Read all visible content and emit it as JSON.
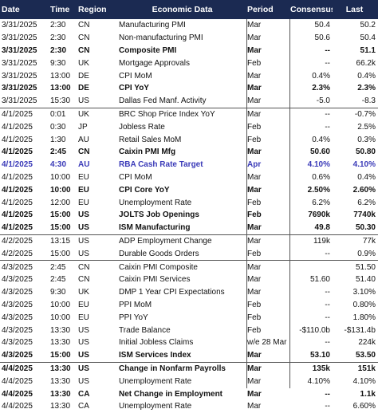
{
  "headers": {
    "date": "Date",
    "time": "Time",
    "region": "Region",
    "event": "Economic Data",
    "period": "Period",
    "consensus": "Consensus",
    "last": "Last"
  },
  "rows": [
    {
      "date": "3/31/2025",
      "time": "2:30",
      "region": "CN",
      "event": "Manufacturing PMI",
      "period": "Mar",
      "consensus": "50.4",
      "last": "50.2",
      "style": "normal",
      "sep": false
    },
    {
      "date": "3/31/2025",
      "time": "2:30",
      "region": "CN",
      "event": "Non-manufacturing PMI",
      "period": "Mar",
      "consensus": "50.6",
      "last": "50.4",
      "style": "normal",
      "sep": false
    },
    {
      "date": "3/31/2025",
      "time": "2:30",
      "region": "CN",
      "event": "Composite PMI",
      "period": "Mar",
      "consensus": "--",
      "last": "51.1",
      "style": "bold",
      "sep": false
    },
    {
      "date": "3/31/2025",
      "time": "9:30",
      "region": "UK",
      "event": "Mortgage Approvals",
      "period": "Feb",
      "consensus": "--",
      "last": "66.2k",
      "style": "normal",
      "sep": false
    },
    {
      "date": "3/31/2025",
      "time": "13:00",
      "region": "DE",
      "event": "CPI MoM",
      "period": "Mar",
      "consensus": "0.4%",
      "last": "0.4%",
      "style": "normal",
      "sep": false
    },
    {
      "date": "3/31/2025",
      "time": "13:00",
      "region": "DE",
      "event": "CPI YoY",
      "period": "Mar",
      "consensus": "2.3%",
      "last": "2.3%",
      "style": "bold",
      "sep": false
    },
    {
      "date": "3/31/2025",
      "time": "15:30",
      "region": "US",
      "event": "Dallas Fed Manf. Activity",
      "period": "Mar",
      "consensus": "-5.0",
      "last": "-8.3",
      "style": "normal",
      "sep": false
    },
    {
      "date": "4/1/2025",
      "time": "0:01",
      "region": "UK",
      "event": "BRC Shop Price Index YoY",
      "period": "Mar",
      "consensus": "--",
      "last": "-0.7%",
      "style": "normal",
      "sep": true
    },
    {
      "date": "4/1/2025",
      "time": "0:30",
      "region": "JP",
      "event": "Jobless Rate",
      "period": "Feb",
      "consensus": "--",
      "last": "2.5%",
      "style": "normal",
      "sep": false
    },
    {
      "date": "4/1/2025",
      "time": "1:30",
      "region": "AU",
      "event": "Retail Sales MoM",
      "period": "Feb",
      "consensus": "0.4%",
      "last": "0.3%",
      "style": "normal",
      "sep": false
    },
    {
      "date": "4/1/2025",
      "time": "2:45",
      "region": "CN",
      "event": "Caixin PMI Mfg",
      "period": "Mar",
      "consensus": "50.60",
      "last": "50.80",
      "style": "bold",
      "sep": false
    },
    {
      "date": "4/1/2025",
      "time": "4:30",
      "region": "AU",
      "event": "RBA Cash Rate Target",
      "period": "Apr",
      "consensus": "4.10%",
      "last": "4.10%",
      "style": "highlight",
      "sep": false
    },
    {
      "date": "4/1/2025",
      "time": "10:00",
      "region": "EU",
      "event": "CPI MoM",
      "period": "Mar",
      "consensus": "0.6%",
      "last": "0.4%",
      "style": "normal",
      "sep": false
    },
    {
      "date": "4/1/2025",
      "time": "10:00",
      "region": "EU",
      "event": "CPI Core YoY",
      "period": "Mar",
      "consensus": "2.50%",
      "last": "2.60%",
      "style": "bold",
      "sep": false
    },
    {
      "date": "4/1/2025",
      "time": "12:00",
      "region": "EU",
      "event": "Unemployment Rate",
      "period": "Feb",
      "consensus": "6.2%",
      "last": "6.2%",
      "style": "normal",
      "sep": false
    },
    {
      "date": "4/1/2025",
      "time": "15:00",
      "region": "US",
      "event": "JOLTS Job Openings",
      "period": "Feb",
      "consensus": "7690k",
      "last": "7740k",
      "style": "bold",
      "sep": false
    },
    {
      "date": "4/1/2025",
      "time": "15:00",
      "region": "US",
      "event": "ISM Manufacturing",
      "period": "Mar",
      "consensus": "49.8",
      "last": "50.30",
      "style": "bold",
      "sep": false
    },
    {
      "date": "4/2/2025",
      "time": "13:15",
      "region": "US",
      "event": "ADP Employment Change",
      "period": "Mar",
      "consensus": "119k",
      "last": "77k",
      "style": "normal",
      "sep": true
    },
    {
      "date": "4/2/2025",
      "time": "15:00",
      "region": "US",
      "event": "Durable Goods Orders",
      "period": "Feb",
      "consensus": "--",
      "last": "0.9%",
      "style": "normal",
      "sep": false
    },
    {
      "date": "4/3/2025",
      "time": "2:45",
      "region": "CN",
      "event": "Caixin PMI Composite",
      "period": "Mar",
      "consensus": "",
      "last": "51.50",
      "style": "normal",
      "sep": true
    },
    {
      "date": "4/3/2025",
      "time": "2:45",
      "region": "CN",
      "event": "Caixin PMI Services",
      "period": "Mar",
      "consensus": "51.60",
      "last": "51.40",
      "style": "normal",
      "sep": false
    },
    {
      "date": "4/3/2025",
      "time": "9:30",
      "region": "UK",
      "event": "DMP 1 Year CPI Expectations",
      "period": "Mar",
      "consensus": "--",
      "last": "3.10%",
      "style": "normal",
      "sep": false
    },
    {
      "date": "4/3/2025",
      "time": "10:00",
      "region": "EU",
      "event": "PPI MoM",
      "period": "Feb",
      "consensus": "--",
      "last": "0.80%",
      "style": "normal",
      "sep": false
    },
    {
      "date": "4/3/2025",
      "time": "10:00",
      "region": "EU",
      "event": "PPI YoY",
      "period": "Feb",
      "consensus": "--",
      "last": "1.80%",
      "style": "normal",
      "sep": false
    },
    {
      "date": "4/3/2025",
      "time": "13:30",
      "region": "US",
      "event": "Trade Balance",
      "period": "Feb",
      "consensus": "-$110.0b",
      "last": "-$131.4b",
      "style": "normal",
      "sep": false
    },
    {
      "date": "4/3/2025",
      "time": "13:30",
      "region": "US",
      "event": "Initial Jobless Claims",
      "period": "w/e 28 Mar",
      "consensus": "--",
      "last": "224k",
      "style": "normal",
      "sep": false
    },
    {
      "date": "4/3/2025",
      "time": "15:00",
      "region": "US",
      "event": "ISM Services Index",
      "period": "Mar",
      "consensus": "53.10",
      "last": "53.50",
      "style": "bold",
      "sep": false
    },
    {
      "date": "4/4/2025",
      "time": "13:30",
      "region": "US",
      "event": "Change in Nonfarm Payrolls",
      "period": "Mar",
      "consensus": "135k",
      "last": "151k",
      "style": "bold",
      "sep": true
    },
    {
      "date": "4/4/2025",
      "time": "13:30",
      "region": "US",
      "event": "Unemployment Rate",
      "period": "Mar",
      "consensus": "4.10%",
      "last": "4.10%",
      "style": "normal",
      "sep": false
    },
    {
      "date": "4/4/2025",
      "time": "13:30",
      "region": "CA",
      "event": "Net Change in Employment",
      "period": "Mar",
      "consensus": "--",
      "last": "1.1k",
      "style": "bold",
      "sep": false
    },
    {
      "date": "4/4/2025",
      "time": "13:30",
      "region": "CA",
      "event": "Unemployment Rate",
      "period": "Mar",
      "consensus": "--",
      "last": "6.60%",
      "style": "normal",
      "sep": false
    }
  ],
  "colors": {
    "header_bg": "#1b2a52",
    "header_text": "#ffffff",
    "highlight_text": "#3a3ab8",
    "divider": "#555555"
  }
}
